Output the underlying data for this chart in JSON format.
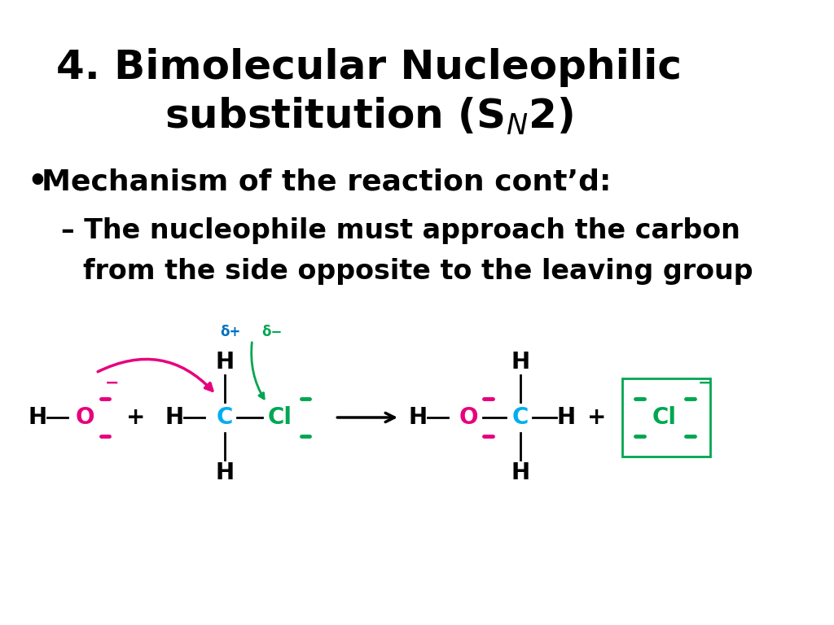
{
  "title_line1": "4. Bimolecular Nucleophilic",
  "title_line2": "substitution (S$_N$2)",
  "bullet1": "Mechanism of the reaction cont’d:",
  "sub_bullet1": "– The nucleophile must approach the carbon",
  "sub_bullet2": "from the side opposite to the leaving group",
  "bg_color": "#ffffff",
  "text_color": "#000000",
  "magenta": "#e6007e",
  "cyan": "#00aeef",
  "green": "#00a651"
}
